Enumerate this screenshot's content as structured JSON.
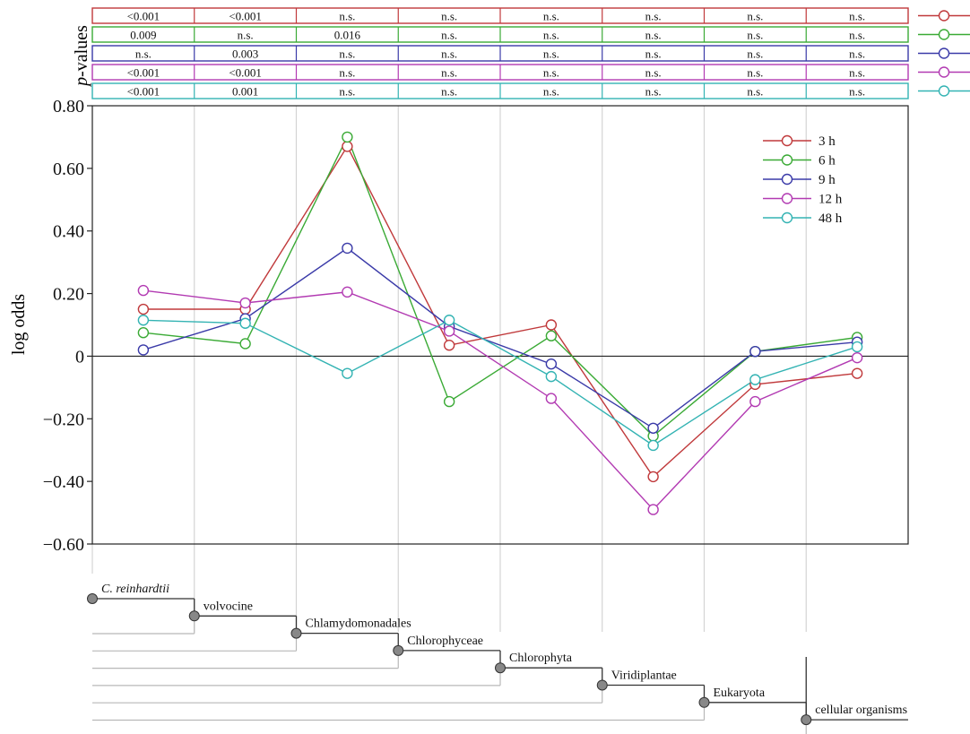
{
  "pvalues_label_prefix": "p",
  "pvalues_label_suffix": "-values",
  "pvalue_rows": [
    {
      "series": "3 h",
      "color": "#c0393b",
      "values": [
        "<0.001",
        "<0.001",
        "n.s.",
        "n.s.",
        "n.s.",
        "n.s.",
        "n.s.",
        "n.s."
      ]
    },
    {
      "series": "6 h",
      "color": "#3aaa35",
      "values": [
        "0.009",
        "n.s.",
        "0.016",
        "n.s.",
        "n.s.",
        "n.s.",
        "n.s.",
        "n.s."
      ]
    },
    {
      "series": "9 h",
      "color": "#3a3aa8",
      "values": [
        "n.s.",
        "0.003",
        "n.s.",
        "n.s.",
        "n.s.",
        "n.s.",
        "n.s.",
        "n.s."
      ]
    },
    {
      "series": "12 h",
      "color": "#b23ab2",
      "values": [
        "<0.001",
        "<0.001",
        "n.s.",
        "n.s.",
        "n.s.",
        "n.s.",
        "n.s.",
        "n.s."
      ]
    },
    {
      "series": "48 h",
      "color": "#33b3b3",
      "values": [
        "<0.001",
        "0.001",
        "n.s.",
        "n.s.",
        "n.s.",
        "n.s.",
        "n.s.",
        "n.s."
      ]
    }
  ],
  "chart_data": {
    "type": "line",
    "title": "",
    "xlabel": "",
    "ylabel": "log odds",
    "ylim": [
      -0.6,
      0.8
    ],
    "yticks": [
      0.8,
      0.6,
      0.4,
      0.2,
      0,
      -0.2,
      -0.4,
      -0.6
    ],
    "ytick_labels": [
      "0.80",
      "0.60",
      "0.40",
      "0.20",
      "0",
      "−0.20",
      "−0.40",
      "−0.60"
    ],
    "grid": "vertical",
    "zero_line": true,
    "legend_position": "top-right",
    "categories": [
      "C. reinhardtii",
      "volvocine",
      "Chlamydomonadales",
      "Chlorophyceae",
      "Chlorophyta",
      "Viridiplantae",
      "Eukaryota",
      "cellular organisms"
    ],
    "series": [
      {
        "name": "3 h",
        "color": "#c0393b",
        "values": [
          0.15,
          0.15,
          0.67,
          0.035,
          0.1,
          -0.385,
          -0.09,
          -0.055
        ]
      },
      {
        "name": "6 h",
        "color": "#3aaa35",
        "values": [
          0.075,
          0.04,
          0.7,
          -0.145,
          0.065,
          -0.255,
          0.015,
          0.06
        ]
      },
      {
        "name": "9 h",
        "color": "#3a3aa8",
        "values": [
          0.02,
          0.12,
          0.345,
          0.095,
          -0.025,
          -0.23,
          0.015,
          0.045
        ]
      },
      {
        "name": "12 h",
        "color": "#b23ab2",
        "values": [
          0.21,
          0.17,
          0.205,
          0.08,
          -0.135,
          -0.49,
          -0.145,
          -0.005
        ]
      },
      {
        "name": "48 h",
        "color": "#33b3b3",
        "values": [
          0.115,
          0.105,
          -0.055,
          0.115,
          -0.065,
          -0.285,
          -0.075,
          0.03
        ]
      }
    ]
  },
  "tree": {
    "nodes": [
      "C. reinhardtii",
      "volvocine",
      "Chlamydomonadales",
      "Chlorophyceae",
      "Chlorophyta",
      "Viridiplantae",
      "Eukaryota",
      "cellular organisms"
    ],
    "italic_node": "C. reinhardtii"
  }
}
